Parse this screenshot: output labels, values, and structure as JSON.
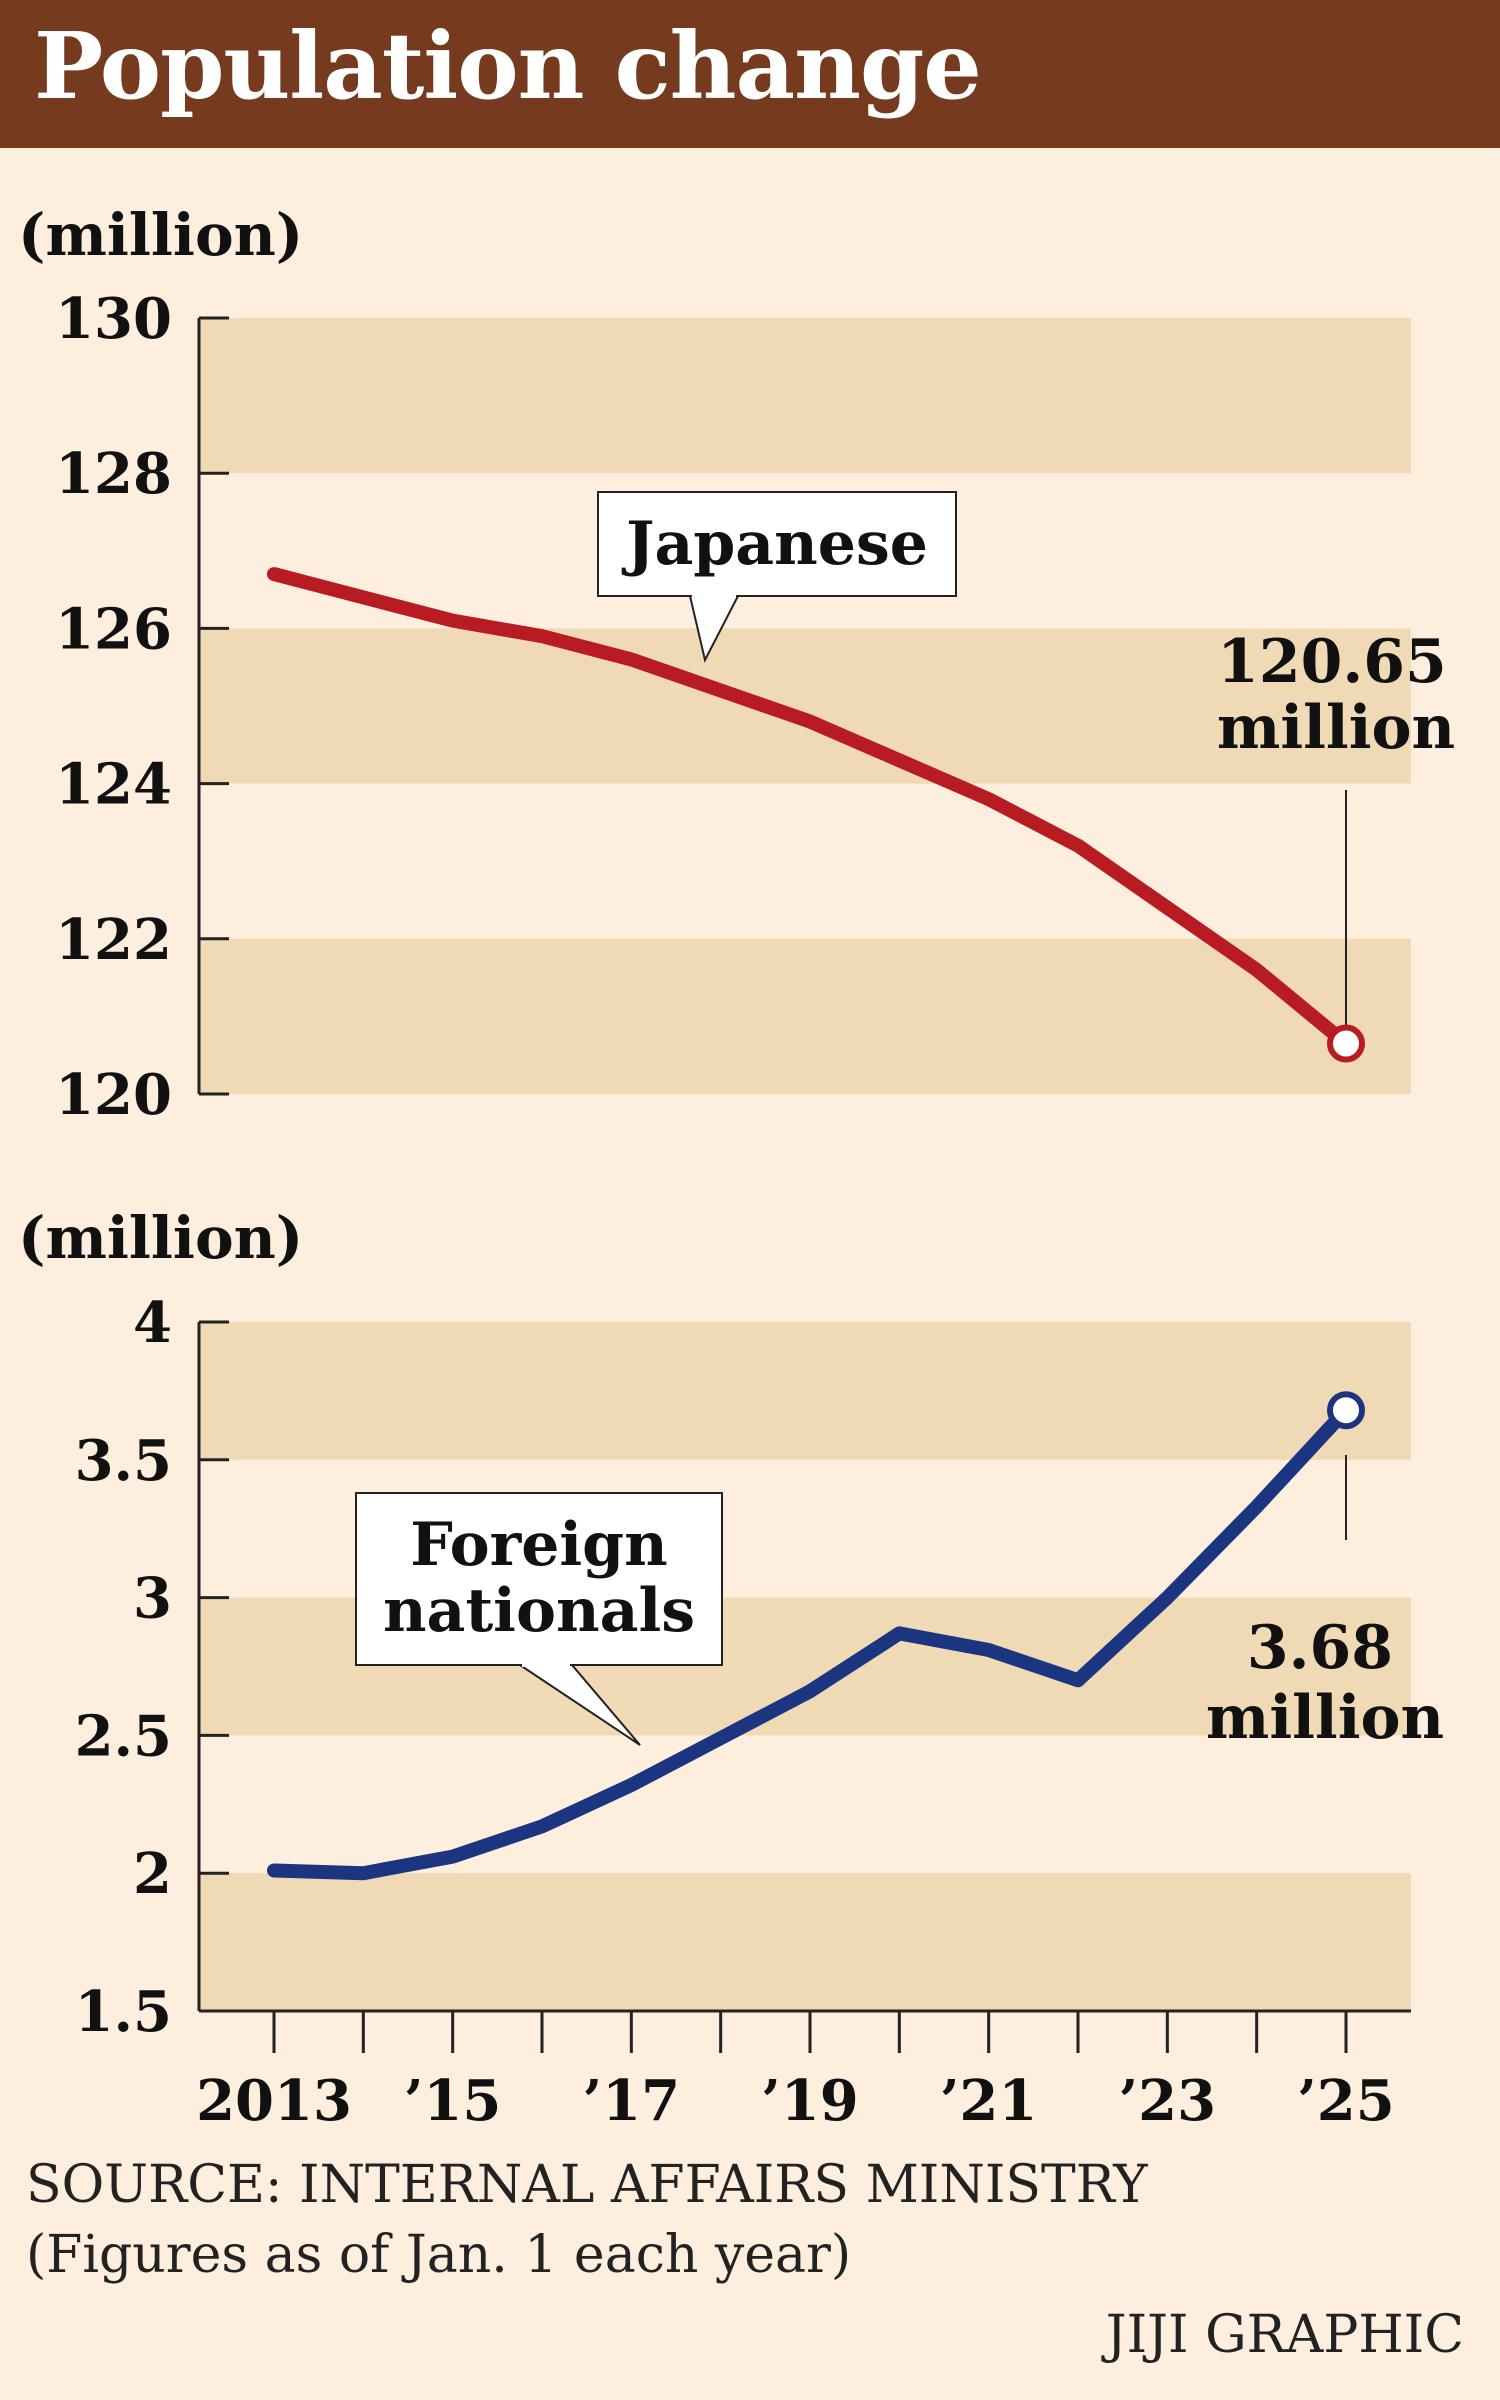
{
  "title": "Population change",
  "chart_data": [
    {
      "type": "line",
      "unit_label": "(million)",
      "x": [
        2013,
        2014,
        2015,
        2016,
        2017,
        2018,
        2019,
        2020,
        2021,
        2022,
        2023,
        2024,
        2025
      ],
      "series": [
        {
          "name": "Japanese",
          "color": "#b81c22",
          "values": [
            126.7,
            126.4,
            126.1,
            125.9,
            125.6,
            125.2,
            124.8,
            124.3,
            123.8,
            123.2,
            122.4,
            121.6,
            120.65
          ]
        }
      ],
      "ylim": [
        120,
        130
      ],
      "yticks": [
        {
          "v": 130,
          "label": "130"
        },
        {
          "v": 128,
          "label": "128"
        },
        {
          "v": 126,
          "label": "126"
        },
        {
          "v": 124,
          "label": "124"
        },
        {
          "v": 122,
          "label": "122"
        },
        {
          "v": 120,
          "label": "120"
        }
      ],
      "callout": {
        "label": "Japanese"
      },
      "end_label": [
        "120.65",
        "million"
      ]
    },
    {
      "type": "line",
      "unit_label": "(million)",
      "x": [
        2013,
        2014,
        2015,
        2016,
        2017,
        2018,
        2019,
        2020,
        2021,
        2022,
        2023,
        2024,
        2025
      ],
      "series": [
        {
          "name": "Foreign nationals",
          "color": "#1b3580",
          "values": [
            2.01,
            2.0,
            2.06,
            2.17,
            2.32,
            2.49,
            2.66,
            2.87,
            2.81,
            2.7,
            3.0,
            3.33,
            3.68
          ]
        }
      ],
      "ylim": [
        1.5,
        4
      ],
      "yticks": [
        {
          "v": 4,
          "label": "4"
        },
        {
          "v": 3.5,
          "label": "3.5"
        },
        {
          "v": 3,
          "label": "3"
        },
        {
          "v": 2.5,
          "label": "2.5"
        },
        {
          "v": 2,
          "label": "2"
        },
        {
          "v": 1.5,
          "label": "1.5"
        }
      ],
      "callout": {
        "label": [
          "Foreign",
          "nationals"
        ]
      },
      "end_label": [
        "3.68",
        "million"
      ],
      "xticks": [
        {
          "v": 2013,
          "label": "2013"
        },
        {
          "v": 2015,
          "label": "’15"
        },
        {
          "v": 2017,
          "label": "’17"
        },
        {
          "v": 2019,
          "label": "’19"
        },
        {
          "v": 2021,
          "label": "’21"
        },
        {
          "v": 2023,
          "label": "’23"
        },
        {
          "v": 2025,
          "label": "’25"
        }
      ]
    }
  ],
  "source": "SOURCE: INTERNAL AFFAIRS MINISTRY",
  "note": "(Figures as of Jan. 1 each year)",
  "credit": "JIJI GRAPHIC",
  "colors": {
    "background": "#fdeedd",
    "band": "#f0d9b5",
    "titlebar": "#763a1e"
  }
}
